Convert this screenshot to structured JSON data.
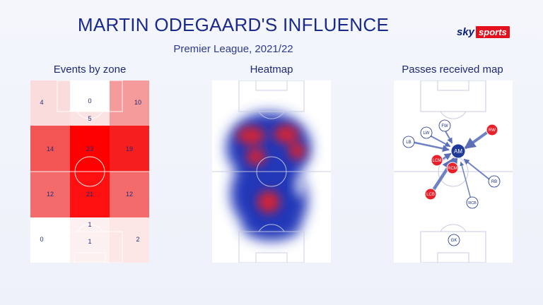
{
  "header": {
    "title": "MARTIN ODEGAARD'S INFLUENCE",
    "subtitle": "Premier League, 2021/22"
  },
  "logo": {
    "sky": "sky",
    "sports": "sports"
  },
  "panels": {
    "events": {
      "title": "Events by zone",
      "zones": [
        {
          "value": "4",
          "color": "#fbdcdc"
        },
        {
          "value": "0",
          "color": "#ffffff"
        },
        {
          "value": "10",
          "color": "#f69b9b"
        },
        {
          "value": "5",
          "color": "#fbe3e3"
        },
        {
          "value": "14",
          "color": "#f35555"
        },
        {
          "value": "23",
          "color": "#ff0000"
        },
        {
          "value": "19",
          "color": "#f51f1f"
        },
        {
          "value": "12",
          "color": "#f36b6b"
        },
        {
          "value": "21",
          "color": "#ff1010"
        },
        {
          "value": "12",
          "color": "#f36b6b"
        },
        {
          "value": "1",
          "color": "#fdf0f0"
        },
        {
          "value": "0",
          "color": "#ffffff"
        },
        {
          "value": "1",
          "color": "#fdf0f0"
        },
        {
          "value": "2",
          "color": "#fce6e6"
        }
      ]
    },
    "heatmap": {
      "title": "Heatmap"
    },
    "passes": {
      "title": "Passes received map",
      "players": [
        {
          "label": "AM",
          "role": "focus"
        },
        {
          "label": "RW",
          "role": "red"
        },
        {
          "label": "LCM",
          "role": "red"
        },
        {
          "label": "RCM",
          "role": "red"
        },
        {
          "label": "LCB",
          "role": "red"
        },
        {
          "label": "FW",
          "role": "outline"
        },
        {
          "label": "LW",
          "role": "outline"
        },
        {
          "label": "LB",
          "role": "outline"
        },
        {
          "label": "RB",
          "role": "outline"
        },
        {
          "label": "RCB",
          "role": "outline"
        },
        {
          "label": "GK",
          "role": "outline"
        }
      ]
    }
  },
  "colors": {
    "navy": "#1a2a8a",
    "red": "#e8202a",
    "focus": "#1f3a9a"
  }
}
